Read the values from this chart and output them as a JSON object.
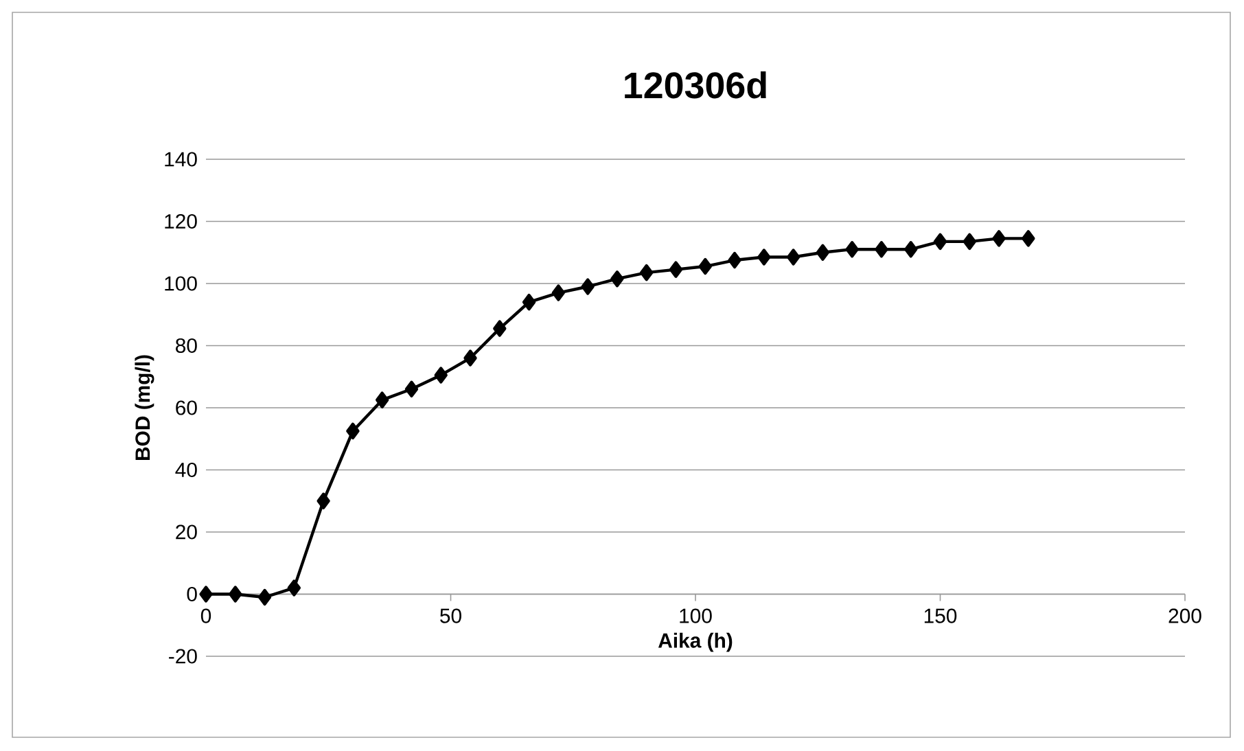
{
  "chart_data": {
    "type": "line",
    "title": "120306d",
    "xlabel": "Aika (h)",
    "ylabel": "BOD (mg/l)",
    "x": [
      0,
      6,
      12,
      18,
      24,
      30,
      36,
      42,
      48,
      54,
      60,
      66,
      72,
      78,
      84,
      90,
      96,
      102,
      108,
      114,
      120,
      126,
      132,
      138,
      144,
      150,
      156,
      162,
      168
    ],
    "series": [
      {
        "color": "#000000",
        "values": [
          0,
          0,
          -1,
          2,
          30,
          52.5,
          62.5,
          66,
          70.5,
          76,
          85.5,
          94,
          97,
          99,
          101.5,
          103.5,
          104.5,
          105.5,
          107.5,
          108.5,
          108.5,
          110,
          111,
          111,
          111,
          113.5,
          113.5,
          114.5,
          114.5
        ]
      }
    ],
    "xlim": [
      0,
      200
    ],
    "xticks": [
      0,
      50,
      100,
      150,
      200
    ],
    "ylim": [
      -20,
      140
    ],
    "yticks": [
      -20,
      0,
      20,
      40,
      60,
      80,
      100,
      120,
      140
    ],
    "grid": "y",
    "marker": "diamond",
    "line_style": "solid"
  }
}
